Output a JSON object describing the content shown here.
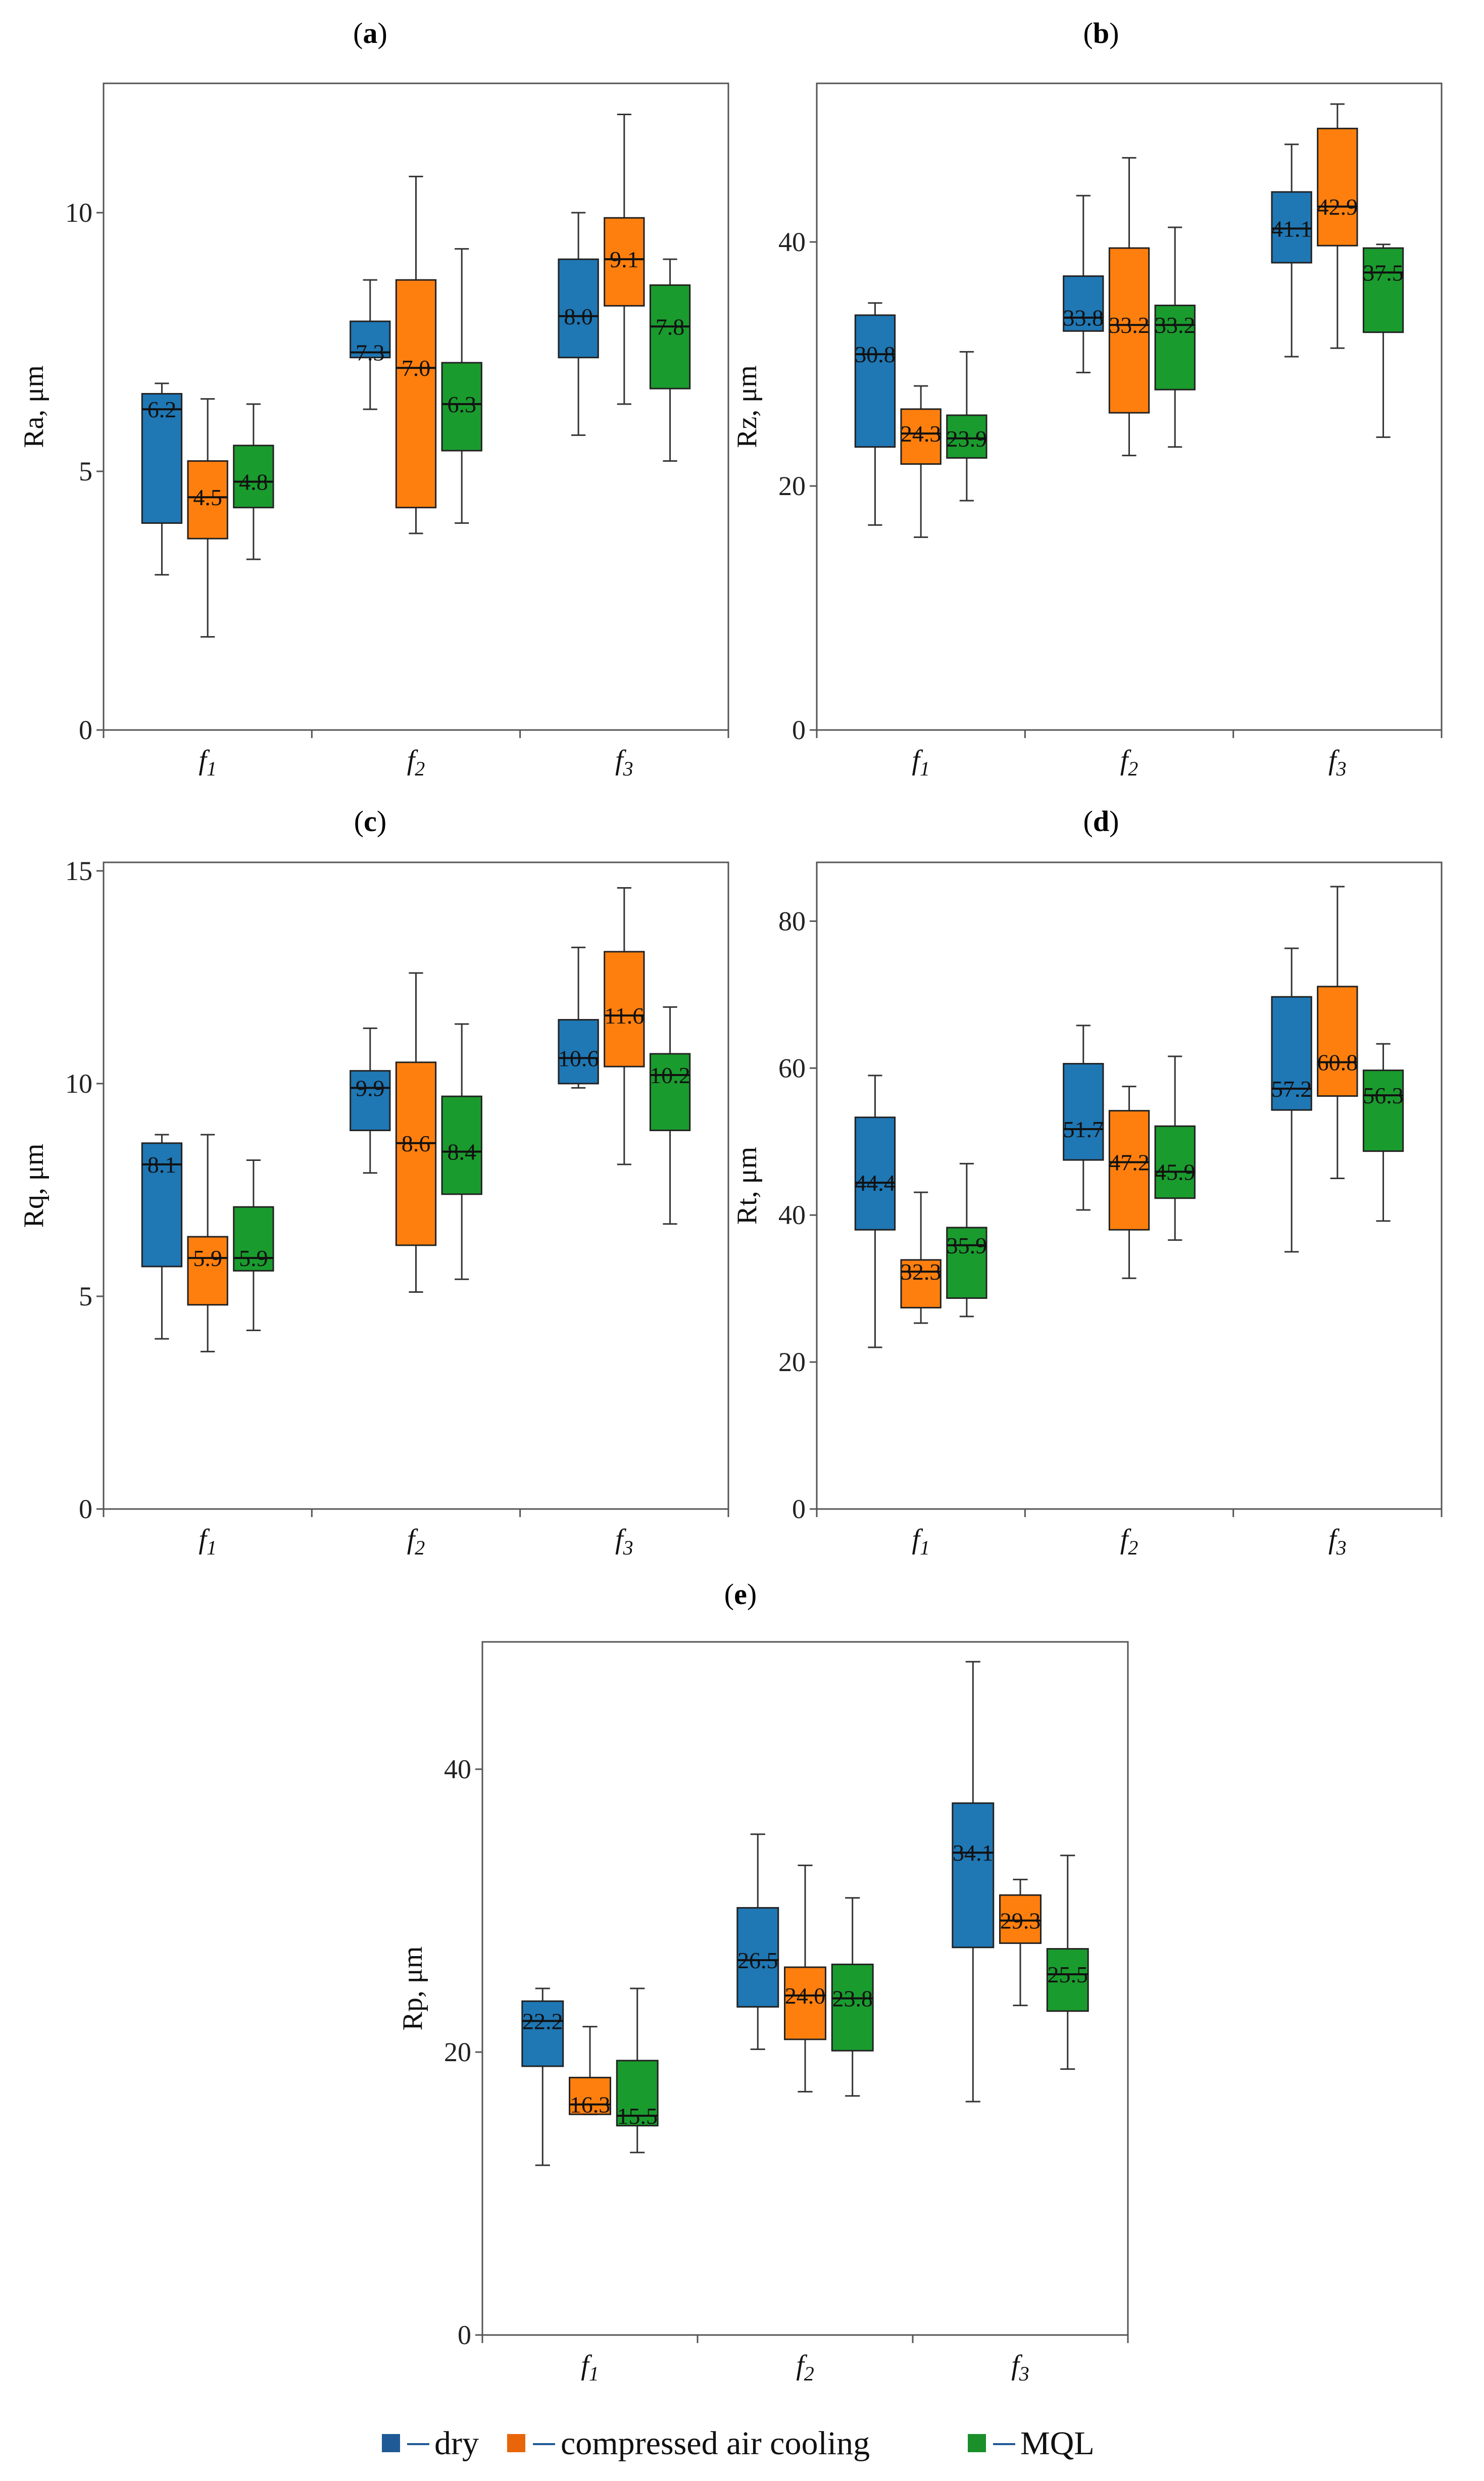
{
  "chart_data": [
    {
      "id": "a",
      "label": "a",
      "type": "box",
      "ylabel": "Ra, μm",
      "ylim": [
        0,
        12.5
      ],
      "yticks": [
        0,
        5,
        10
      ],
      "categories": [
        "f1",
        "f2",
        "f3"
      ],
      "series": [
        {
          "name": "dry",
          "color": "#1f77b4",
          "boxes": [
            {
              "min": 3.0,
              "q1": 4.0,
              "median": 6.2,
              "q3": 6.5,
              "max": 6.7,
              "label": "6.2"
            },
            {
              "min": 6.2,
              "q1": 7.2,
              "median": 7.3,
              "q3": 7.9,
              "max": 8.7,
              "label": "7.3"
            },
            {
              "min": 5.7,
              "q1": 7.2,
              "median": 8.0,
              "q3": 9.1,
              "max": 10.0,
              "label": "8.0"
            }
          ]
        },
        {
          "name": "compressed air cooling",
          "color": "#ff7f0e",
          "boxes": [
            {
              "min": 1.8,
              "q1": 3.7,
              "median": 4.5,
              "q3": 5.2,
              "max": 6.4,
              "label": "4.5"
            },
            {
              "min": 3.8,
              "q1": 4.3,
              "median": 7.0,
              "q3": 8.7,
              "max": 10.7,
              "label": "7.0"
            },
            {
              "min": 6.3,
              "q1": 8.2,
              "median": 9.1,
              "q3": 9.9,
              "max": 11.9,
              "label": "9.1"
            }
          ]
        },
        {
          "name": "MQL",
          "color": "#1a9b2e",
          "boxes": [
            {
              "min": 3.3,
              "q1": 4.3,
              "median": 4.8,
              "q3": 5.5,
              "max": 6.3,
              "label": "4.8"
            },
            {
              "min": 4.0,
              "q1": 5.4,
              "median": 6.3,
              "q3": 7.1,
              "max": 9.3,
              "label": "6.3"
            },
            {
              "min": 5.2,
              "q1": 6.6,
              "median": 7.8,
              "q3": 8.6,
              "max": 9.1,
              "label": "7.8"
            }
          ]
        }
      ]
    },
    {
      "id": "b",
      "label": "b",
      "type": "box",
      "ylabel": "Rz, μm",
      "ylim": [
        0,
        53
      ],
      "yticks": [
        0,
        20,
        40
      ],
      "categories": [
        "f1",
        "f2",
        "f3"
      ],
      "series": [
        {
          "name": "dry",
          "color": "#1f77b4",
          "boxes": [
            {
              "min": 16.8,
              "q1": 23.2,
              "median": 30.8,
              "q3": 34.0,
              "max": 35.0,
              "label": "30.8"
            },
            {
              "min": 29.3,
              "q1": 32.7,
              "median": 33.8,
              "q3": 37.2,
              "max": 43.8,
              "label": "33.8"
            },
            {
              "min": 30.6,
              "q1": 38.3,
              "median": 41.1,
              "q3": 44.1,
              "max": 48.0,
              "label": "41.1"
            }
          ]
        },
        {
          "name": "compressed air cooling",
          "color": "#ff7f0e",
          "boxes": [
            {
              "min": 15.8,
              "q1": 21.8,
              "median": 24.3,
              "q3": 26.3,
              "max": 28.2,
              "label": "24.3"
            },
            {
              "min": 22.5,
              "q1": 26.0,
              "median": 33.2,
              "q3": 39.5,
              "max": 46.9,
              "label": "33.2"
            },
            {
              "min": 31.3,
              "q1": 39.7,
              "median": 42.9,
              "q3": 49.3,
              "max": 51.3,
              "label": "42.9"
            }
          ]
        },
        {
          "name": "MQL",
          "color": "#1a9b2e",
          "boxes": [
            {
              "min": 18.8,
              "q1": 22.3,
              "median": 23.9,
              "q3": 25.8,
              "max": 31.0,
              "label": "23.9"
            },
            {
              "min": 23.2,
              "q1": 27.9,
              "median": 33.2,
              "q3": 34.8,
              "max": 41.2,
              "label": "33.2"
            },
            {
              "min": 24.0,
              "q1": 32.6,
              "median": 37.5,
              "q3": 39.5,
              "max": 39.8,
              "label": "37.5"
            }
          ]
        }
      ]
    },
    {
      "id": "c",
      "label": "c",
      "type": "box",
      "ylabel": "Rq, μm",
      "ylim": [
        0,
        15.2
      ],
      "yticks": [
        0,
        5,
        10,
        15
      ],
      "categories": [
        "f1",
        "f2",
        "f3"
      ],
      "series": [
        {
          "name": "dry",
          "color": "#1f77b4",
          "boxes": [
            {
              "min": 4.0,
              "q1": 5.7,
              "median": 8.1,
              "q3": 8.6,
              "max": 8.8,
              "label": "8.1"
            },
            {
              "min": 7.9,
              "q1": 8.9,
              "median": 9.9,
              "q3": 10.3,
              "max": 11.3,
              "label": "9.9"
            },
            {
              "min": 9.9,
              "q1": 10.0,
              "median": 10.6,
              "q3": 11.5,
              "max": 13.2,
              "label": "10.6"
            }
          ]
        },
        {
          "name": "compressed air cooling",
          "color": "#ff7f0e",
          "boxes": [
            {
              "min": 3.7,
              "q1": 4.8,
              "median": 5.9,
              "q3": 6.4,
              "max": 8.8,
              "label": "5.9"
            },
            {
              "min": 5.1,
              "q1": 6.2,
              "median": 8.6,
              "q3": 10.5,
              "max": 12.6,
              "label": "8.6"
            },
            {
              "min": 8.1,
              "q1": 10.4,
              "median": 11.6,
              "q3": 13.1,
              "max": 14.6,
              "label": "11.6"
            }
          ]
        },
        {
          "name": "MQL",
          "color": "#1a9b2e",
          "boxes": [
            {
              "min": 4.2,
              "q1": 5.6,
              "median": 5.9,
              "q3": 7.1,
              "max": 8.2,
              "label": "5.9"
            },
            {
              "min": 5.4,
              "q1": 7.4,
              "median": 8.4,
              "q3": 9.7,
              "max": 11.4,
              "label": "8.4"
            },
            {
              "min": 6.7,
              "q1": 8.9,
              "median": 10.2,
              "q3": 10.7,
              "max": 11.8,
              "label": "10.2"
            }
          ]
        }
      ]
    },
    {
      "id": "d",
      "label": "d",
      "type": "box",
      "ylabel": "Rt, μm",
      "ylim": [
        0,
        88
      ],
      "yticks": [
        0,
        20,
        40,
        60,
        80
      ],
      "categories": [
        "f1",
        "f2",
        "f3"
      ],
      "series": [
        {
          "name": "dry",
          "color": "#1f77b4",
          "boxes": [
            {
              "min": 22.0,
              "q1": 38.0,
              "median": 44.4,
              "q3": 53.3,
              "max": 59.0,
              "label": "44.4"
            },
            {
              "min": 40.7,
              "q1": 47.5,
              "median": 51.7,
              "q3": 60.6,
              "max": 65.8,
              "label": "51.7"
            },
            {
              "min": 35.0,
              "q1": 54.3,
              "median": 57.2,
              "q3": 69.7,
              "max": 76.3,
              "label": "57.2"
            }
          ]
        },
        {
          "name": "compressed air cooling",
          "color": "#ff7f0e",
          "boxes": [
            {
              "min": 25.3,
              "q1": 27.4,
              "median": 32.3,
              "q3": 33.9,
              "max": 43.1,
              "label": "32.3"
            },
            {
              "min": 31.4,
              "q1": 38.0,
              "median": 47.2,
              "q3": 54.2,
              "max": 57.5,
              "label": "47.2"
            },
            {
              "min": 45.0,
              "q1": 56.2,
              "median": 60.8,
              "q3": 71.1,
              "max": 84.7,
              "label": "60.8"
            }
          ]
        },
        {
          "name": "MQL",
          "color": "#1a9b2e",
          "boxes": [
            {
              "min": 26.2,
              "q1": 28.7,
              "median": 35.9,
              "q3": 38.3,
              "max": 47.0,
              "label": "35.9"
            },
            {
              "min": 36.6,
              "q1": 42.3,
              "median": 45.9,
              "q3": 52.1,
              "max": 61.6,
              "label": "45.9"
            },
            {
              "min": 39.2,
              "q1": 48.7,
              "median": 56.3,
              "q3": 59.7,
              "max": 63.3,
              "label": "56.3"
            }
          ]
        }
      ]
    },
    {
      "id": "e",
      "label": "e",
      "type": "box",
      "ylabel": "Rp, μm",
      "ylim": [
        0,
        49
      ],
      "yticks": [
        0,
        20,
        40
      ],
      "categories": [
        "f1",
        "f2",
        "f3"
      ],
      "series": [
        {
          "name": "dry",
          "color": "#1f77b4",
          "boxes": [
            {
              "min": 12.0,
              "q1": 19.0,
              "median": 22.2,
              "q3": 23.6,
              "max": 24.5,
              "label": "22.2"
            },
            {
              "min": 20.2,
              "q1": 23.2,
              "median": 26.5,
              "q3": 30.2,
              "max": 35.4,
              "label": "26.5"
            },
            {
              "min": 16.5,
              "q1": 27.4,
              "median": 34.1,
              "q3": 37.6,
              "max": 47.6,
              "label": "34.1"
            }
          ]
        },
        {
          "name": "compressed air cooling",
          "color": "#ff7f0e",
          "boxes": [
            {
              "min": 15.6,
              "q1": 15.6,
              "median": 16.3,
              "q3": 18.2,
              "max": 21.8,
              "label": "16.3"
            },
            {
              "min": 17.2,
              "q1": 20.9,
              "median": 24.0,
              "q3": 26.0,
              "max": 33.2,
              "label": "24.0"
            },
            {
              "min": 23.3,
              "q1": 27.7,
              "median": 29.3,
              "q3": 31.1,
              "max": 32.2,
              "label": "29.3"
            }
          ]
        },
        {
          "name": "MQL",
          "color": "#1a9b2e",
          "boxes": [
            {
              "min": 12.9,
              "q1": 14.8,
              "median": 15.5,
              "q3": 19.4,
              "max": 24.5,
              "label": "15.5"
            },
            {
              "min": 16.9,
              "q1": 20.1,
              "median": 23.8,
              "q3": 26.2,
              "max": 30.9,
              "label": "23.8"
            },
            {
              "min": 18.8,
              "q1": 22.9,
              "median": 25.5,
              "q3": 27.3,
              "max": 33.9,
              "label": "25.5"
            }
          ]
        }
      ]
    }
  ],
  "legend": {
    "items": [
      {
        "label": "dry",
        "color": "#1f5a96"
      },
      {
        "label": "compressed air cooling",
        "color": "#e8650a"
      },
      {
        "label": "MQL",
        "color": "#1a8f2a"
      }
    ]
  }
}
